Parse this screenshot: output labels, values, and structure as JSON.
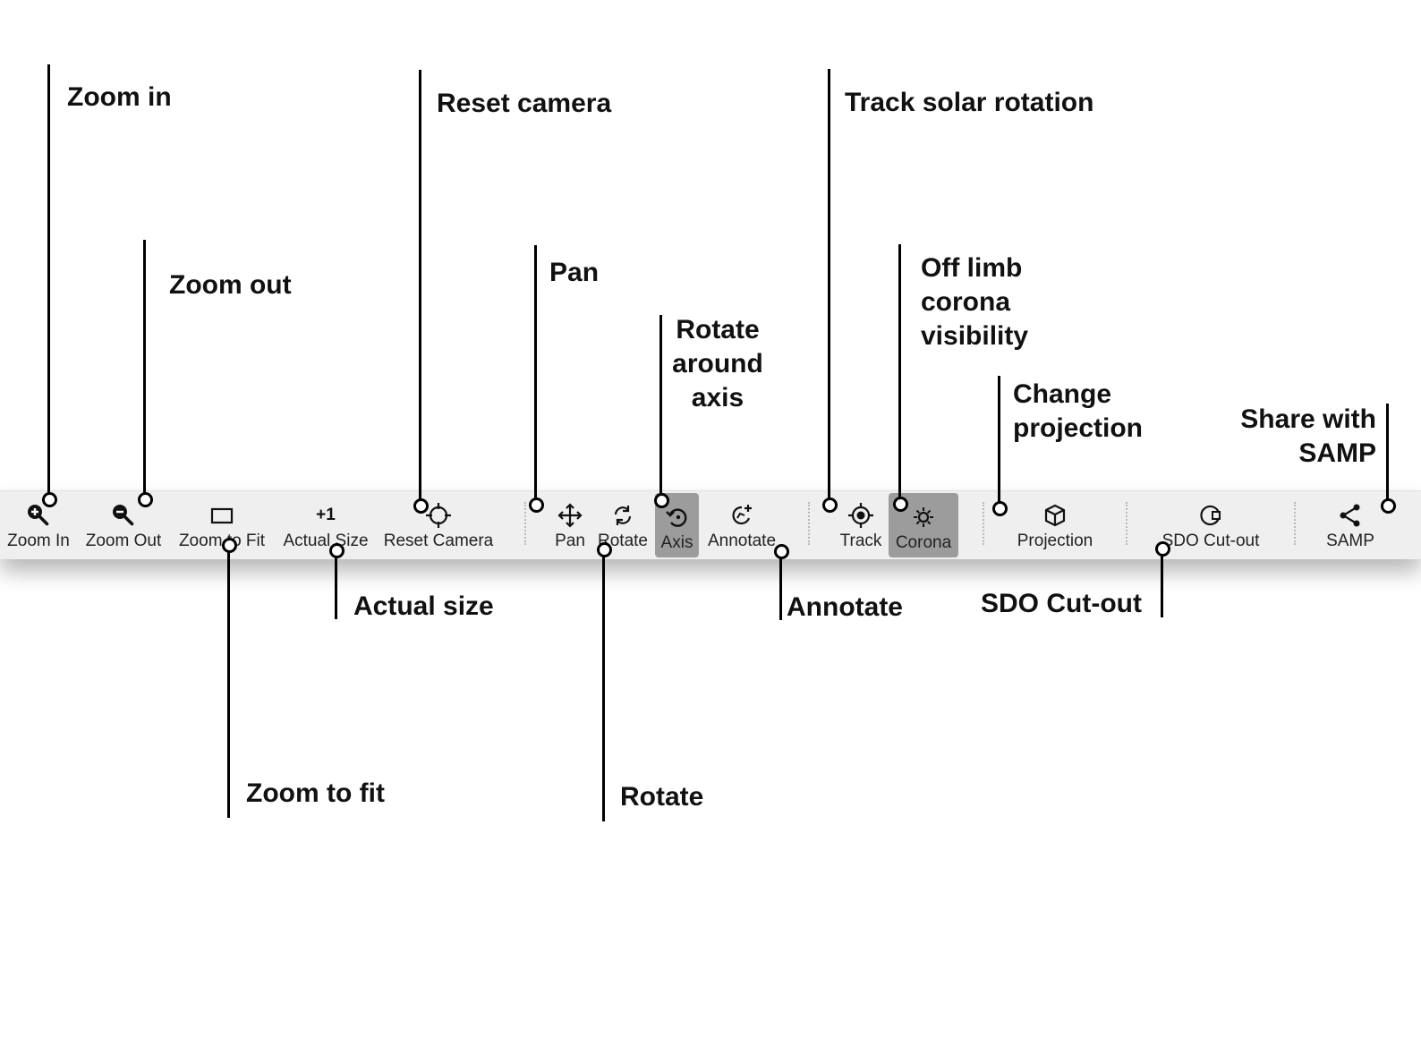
{
  "toolbar": {
    "buttons": [
      {
        "id": "zoom-in",
        "label": "Zoom In",
        "icon": "zoom-in-icon"
      },
      {
        "id": "zoom-out",
        "label": "Zoom Out",
        "icon": "zoom-out-icon"
      },
      {
        "id": "zoom-to-fit",
        "label": "Zoom to Fit",
        "icon": "rectangle-icon"
      },
      {
        "id": "actual-size",
        "label": "Actual Size",
        "icon": "plus-one-icon",
        "glyph": "+1"
      },
      {
        "id": "reset-camera",
        "label": "Reset Camera",
        "icon": "crosshair-icon"
      },
      {
        "id": "pan",
        "label": "Pan",
        "icon": "move-arrows-icon"
      },
      {
        "id": "rotate",
        "label": "Rotate",
        "icon": "rotate-arrows-icon"
      },
      {
        "id": "axis",
        "label": "Axis",
        "icon": "axis-rotate-icon",
        "active": true
      },
      {
        "id": "annotate",
        "label": "Annotate",
        "icon": "annotate-icon"
      },
      {
        "id": "track",
        "label": "Track",
        "icon": "target-icon"
      },
      {
        "id": "corona",
        "label": "Corona",
        "icon": "sun-icon",
        "active": true
      },
      {
        "id": "projection",
        "label": "Projection",
        "icon": "cube-icon"
      },
      {
        "id": "sdo-cutout",
        "label": "SDO Cut-out",
        "icon": "cutout-icon"
      },
      {
        "id": "samp",
        "label": "SAMP",
        "icon": "share-icon"
      }
    ]
  },
  "callouts": {
    "zoom_in": "Zoom in",
    "zoom_out": "Zoom out",
    "reset_camera": "Reset camera",
    "pan": "Pan",
    "rotate_axis": [
      "Rotate",
      "around",
      "axis"
    ],
    "track": "Track solar rotation",
    "corona": [
      "Off limb",
      "corona",
      "visibility"
    ],
    "projection": [
      "Change",
      "projection"
    ],
    "samp": [
      "Share with",
      "SAMP"
    ],
    "zoom_fit": "Zoom to fit",
    "actual_size": "Actual size",
    "rotate": "Rotate",
    "annotate": "Annotate",
    "sdo_cutout": "SDO Cut-out"
  },
  "colors": {
    "toolbar_bg": "#efefef",
    "active_bg": "#9c9c9c",
    "ink": "#000000"
  }
}
